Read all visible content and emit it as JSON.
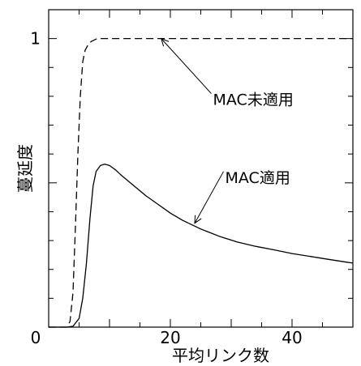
{
  "chart_data": {
    "type": "line",
    "xlabel": "平均リンク数",
    "ylabel": "蔓延度",
    "xlim": [
      0,
      50
    ],
    "ylim": [
      0,
      1.1
    ],
    "x_ticks": [
      {
        "value": 0,
        "label": "0"
      },
      {
        "value": 20,
        "label": "20"
      },
      {
        "value": 40,
        "label": "40"
      }
    ],
    "y_ticks": [
      {
        "value": 1,
        "label": "1"
      }
    ],
    "grid": false,
    "legend": "none",
    "series": [
      {
        "name": "MAC未適用",
        "style": "dashed",
        "color": "#000000",
        "x": [
          0,
          3.0,
          3.5,
          4.0,
          4.4,
          4.8,
          5.2,
          5.6,
          6.0,
          6.5,
          7.0,
          8.0,
          9.0,
          10.0,
          15,
          20,
          25,
          30,
          35,
          40,
          45,
          50
        ],
        "y": [
          0,
          0,
          0.02,
          0.12,
          0.35,
          0.6,
          0.8,
          0.92,
          0.96,
          0.98,
          0.99,
          1.0,
          1.0,
          1.0,
          1.0,
          1.0,
          1.0,
          1.0,
          1.0,
          1.0,
          1.0,
          1.0
        ]
      },
      {
        "name": "MAC適用",
        "style": "solid",
        "color": "#000000",
        "x": [
          0,
          3.0,
          4.0,
          5.0,
          5.6,
          6.2,
          6.8,
          7.3,
          7.8,
          8.5,
          9.2,
          10.0,
          11.0,
          12.0,
          14.0,
          16.0,
          18.0,
          20.0,
          22.0,
          25.0,
          28.0,
          31.0,
          34.0,
          37.0,
          40.0,
          43.0,
          46.0,
          49.0,
          50.0
        ],
        "y": [
          0,
          0,
          0.003,
          0.03,
          0.1,
          0.22,
          0.38,
          0.49,
          0.54,
          0.56,
          0.565,
          0.56,
          0.545,
          0.525,
          0.49,
          0.455,
          0.425,
          0.395,
          0.37,
          0.34,
          0.315,
          0.295,
          0.28,
          0.268,
          0.255,
          0.245,
          0.235,
          0.225,
          0.222
        ]
      }
    ],
    "annotations": [
      {
        "text": "MAC未適用",
        "points_to_series": "MAC未適用",
        "x_at": 18.5,
        "y_at": 1.0,
        "text_x": 27,
        "text_y": 0.77
      },
      {
        "text": "MAC適用",
        "points_to_series": "MAC適用",
        "x_at": 24,
        "y_at": 0.36,
        "text_x": 29,
        "text_y": 0.5
      }
    ]
  }
}
